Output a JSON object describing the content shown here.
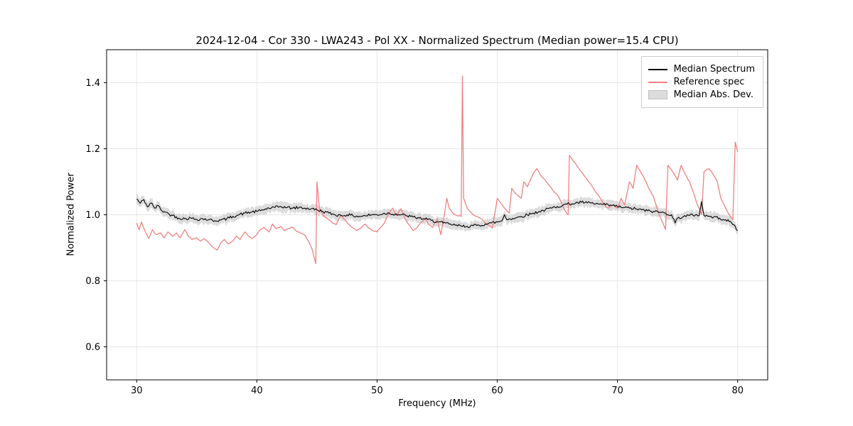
{
  "chart_data": {
    "type": "line",
    "title": "2024-12-04 - Cor 330 - LWA243 - Pol XX - Normalized Spectrum (Median power=15.4 CPU)",
    "xlabel": "Frequency (MHz)",
    "ylabel": "Normalized Power",
    "xlim": [
      27.5,
      82.5
    ],
    "ylim": [
      0.5,
      1.5
    ],
    "xticks": [
      30,
      40,
      50,
      60,
      70,
      80
    ],
    "yticks": [
      0.6,
      0.8,
      1.0,
      1.2,
      1.4
    ],
    "grid": true,
    "legend_position": "upper right",
    "series": [
      {
        "name": "Median Spectrum",
        "type": "line",
        "color": "#000000",
        "linewidth": 1.1,
        "noise": 0.0045,
        "points": [
          [
            30,
            1.048
          ],
          [
            30.3,
            1.035
          ],
          [
            30.6,
            1.046
          ],
          [
            30.9,
            1.024
          ],
          [
            31.2,
            1.036
          ],
          [
            31.5,
            1.02
          ],
          [
            31.8,
            1.028
          ],
          [
            32.1,
            1.012
          ],
          [
            32.4,
            1.008
          ],
          [
            32.7,
            1.002
          ],
          [
            33,
            0.998
          ],
          [
            33.5,
            0.99
          ],
          [
            34,
            0.988
          ],
          [
            34.5,
            0.99
          ],
          [
            35,
            0.986
          ],
          [
            35.5,
            0.988
          ],
          [
            36,
            0.985
          ],
          [
            36.5,
            0.982
          ],
          [
            37,
            0.984
          ],
          [
            37.5,
            0.988
          ],
          [
            38,
            0.995
          ],
          [
            38.5,
            1
          ],
          [
            39,
            1.005
          ],
          [
            39.5,
            1.008
          ],
          [
            40,
            1.01
          ],
          [
            40.5,
            1.015
          ],
          [
            41,
            1.02
          ],
          [
            41.5,
            1.022
          ],
          [
            42,
            1.025
          ],
          [
            42.5,
            1.022
          ],
          [
            43,
            1.02
          ],
          [
            43.5,
            1.022
          ],
          [
            44,
            1.02
          ],
          [
            44.5,
            1.018
          ],
          [
            45,
            1.015
          ],
          [
            45.5,
            1.01
          ],
          [
            46,
            1.005
          ],
          [
            46.5,
            1
          ],
          [
            47,
            0.998
          ],
          [
            47.5,
            1
          ],
          [
            48,
            0.997
          ],
          [
            48.5,
            0.995
          ],
          [
            49,
            0.997
          ],
          [
            49.5,
            1
          ],
          [
            50,
            1
          ],
          [
            50.5,
            1.003
          ],
          [
            51,
            1.005
          ],
          [
            51.5,
            1.002
          ],
          [
            52,
            1
          ],
          [
            52.5,
            0.997
          ],
          [
            53,
            0.993
          ],
          [
            53.5,
            0.99
          ],
          [
            54,
            0.987
          ],
          [
            54.5,
            0.983
          ],
          [
            55,
            0.979
          ],
          [
            55.5,
            0.975
          ],
          [
            56,
            0.972
          ],
          [
            56.5,
            0.968
          ],
          [
            57,
            0.966
          ],
          [
            57.5,
            0.965
          ],
          [
            58,
            0.967
          ],
          [
            58.5,
            0.968
          ],
          [
            59,
            0.972
          ],
          [
            59.5,
            0.975
          ],
          [
            60,
            0.978
          ],
          [
            60.4,
            0.982
          ],
          [
            60.6,
            1.0
          ],
          [
            60.8,
            0.985
          ],
          [
            61,
            0.988
          ],
          [
            61.5,
            0.99
          ],
          [
            62,
            0.995
          ],
          [
            62.5,
            1
          ],
          [
            63,
            1.005
          ],
          [
            63.5,
            1.01
          ],
          [
            64,
            1.015
          ],
          [
            64.5,
            1.02
          ],
          [
            65,
            1.025
          ],
          [
            65.5,
            1.03
          ],
          [
            66,
            1.033
          ],
          [
            66.5,
            1.035
          ],
          [
            67,
            1.038
          ],
          [
            67.5,
            1.036
          ],
          [
            68,
            1.034
          ],
          [
            68.5,
            1.032
          ],
          [
            69,
            1.03
          ],
          [
            69.5,
            1.028
          ],
          [
            70,
            1.025
          ],
          [
            70.5,
            1.022
          ],
          [
            71,
            1.02
          ],
          [
            71.5,
            1.018
          ],
          [
            72,
            1.015
          ],
          [
            72.5,
            1.012
          ],
          [
            73,
            1.01
          ],
          [
            73.5,
            1.008
          ],
          [
            74,
            1.005
          ],
          [
            74.5,
            1
          ],
          [
            74.8,
            0.975
          ],
          [
            75,
            0.99
          ],
          [
            75.5,
            0.995
          ],
          [
            76,
            0.998
          ],
          [
            76.5,
            1
          ],
          [
            76.8,
            0.998
          ],
          [
            77,
            1.04
          ],
          [
            77.2,
            0.998
          ],
          [
            77.5,
            0.996
          ],
          [
            78,
            0.993
          ],
          [
            78.5,
            0.99
          ],
          [
            79,
            0.985
          ],
          [
            79.5,
            0.975
          ],
          [
            79.8,
            0.965
          ],
          [
            80,
            0.952
          ]
        ]
      },
      {
        "name": "Reference spec",
        "type": "line",
        "color": "#f28080",
        "linewidth": 1.3,
        "noise": 0.0015,
        "points": [
          [
            30,
            0.975
          ],
          [
            30.2,
            0.955
          ],
          [
            30.4,
            0.978
          ],
          [
            30.7,
            0.95
          ],
          [
            31,
            0.928
          ],
          [
            31.3,
            0.955
          ],
          [
            31.6,
            0.94
          ],
          [
            32,
            0.945
          ],
          [
            32.3,
            0.93
          ],
          [
            32.6,
            0.948
          ],
          [
            33,
            0.935
          ],
          [
            33.3,
            0.945
          ],
          [
            33.6,
            0.93
          ],
          [
            34,
            0.955
          ],
          [
            34.3,
            0.935
          ],
          [
            34.6,
            0.925
          ],
          [
            35,
            0.93
          ],
          [
            35.3,
            0.92
          ],
          [
            35.6,
            0.928
          ],
          [
            36,
            0.915
          ],
          [
            36.4,
            0.9
          ],
          [
            36.7,
            0.893
          ],
          [
            37,
            0.915
          ],
          [
            37.3,
            0.925
          ],
          [
            37.6,
            0.912
          ],
          [
            38,
            0.92
          ],
          [
            38.3,
            0.935
          ],
          [
            38.6,
            0.925
          ],
          [
            39,
            0.948
          ],
          [
            39.3,
            0.935
          ],
          [
            39.6,
            0.928
          ],
          [
            40,
            0.94
          ],
          [
            40.3,
            0.955
          ],
          [
            40.6,
            0.962
          ],
          [
            41,
            0.948
          ],
          [
            41.3,
            0.972
          ],
          [
            41.6,
            0.958
          ],
          [
            42,
            0.965
          ],
          [
            42.3,
            0.952
          ],
          [
            42.6,
            0.958
          ],
          [
            43,
            0.962
          ],
          [
            43.3,
            0.95
          ],
          [
            43.6,
            0.945
          ],
          [
            44,
            0.938
          ],
          [
            44.3,
            0.92
          ],
          [
            44.6,
            0.895
          ],
          [
            44.9,
            0.852
          ],
          [
            45,
            1.1
          ],
          [
            45.2,
            1.02
          ],
          [
            45.5,
            1
          ],
          [
            45.8,
            0.99
          ],
          [
            46,
            0.985
          ],
          [
            46.3,
            0.975
          ],
          [
            46.6,
            0.97
          ],
          [
            47,
            1
          ],
          [
            47.3,
            0.985
          ],
          [
            47.6,
            0.972
          ],
          [
            48,
            0.96
          ],
          [
            48.3,
            0.952
          ],
          [
            48.6,
            0.958
          ],
          [
            49,
            0.972
          ],
          [
            49.3,
            0.96
          ],
          [
            49.6,
            0.952
          ],
          [
            50,
            0.948
          ],
          [
            50.3,
            0.962
          ],
          [
            50.6,
            0.975
          ],
          [
            51,
            1.005
          ],
          [
            51.3,
            1.02
          ],
          [
            51.6,
            0.998
          ],
          [
            52,
            1.018
          ],
          [
            52.3,
            0.99
          ],
          [
            52.6,
            0.972
          ],
          [
            53,
            0.952
          ],
          [
            53.3,
            0.96
          ],
          [
            53.6,
            0.975
          ],
          [
            54,
            0.988
          ],
          [
            54.3,
            0.97
          ],
          [
            54.6,
            0.962
          ],
          [
            55,
            0.988
          ],
          [
            55.3,
            0.94
          ],
          [
            55.6,
            1
          ],
          [
            55.8,
            1.05
          ],
          [
            56,
            1.02
          ],
          [
            56.3,
            1.005
          ],
          [
            56.6,
            0.998
          ],
          [
            57,
            0.995
          ],
          [
            57.1,
            1.42
          ],
          [
            57.2,
            1.05
          ],
          [
            57.5,
            1.02
          ],
          [
            58,
            1
          ],
          [
            58.3,
            0.995
          ],
          [
            58.6,
            0.99
          ],
          [
            59,
            0.975
          ],
          [
            59.3,
            0.968
          ],
          [
            59.6,
            0.96
          ],
          [
            60,
            1.05
          ],
          [
            60.3,
            1.035
          ],
          [
            60.6,
            1.02
          ],
          [
            61,
            1.005
          ],
          [
            61.2,
            1.08
          ],
          [
            61.5,
            1.065
          ],
          [
            62,
            1.05
          ],
          [
            62.2,
            1.1
          ],
          [
            62.5,
            1.085
          ],
          [
            63,
            1.125
          ],
          [
            63.3,
            1.14
          ],
          [
            63.6,
            1.12
          ],
          [
            64,
            1.105
          ],
          [
            64.3,
            1.09
          ],
          [
            64.6,
            1.075
          ],
          [
            65,
            1.06
          ],
          [
            65.3,
            1.04
          ],
          [
            65.6,
            1.015
          ],
          [
            65.9,
            1
          ],
          [
            66,
            1.18
          ],
          [
            66.4,
            1.16
          ],
          [
            66.8,
            1.14
          ],
          [
            67.2,
            1.12
          ],
          [
            67.6,
            1.1
          ],
          [
            68,
            1.08
          ],
          [
            68.4,
            1.06
          ],
          [
            68.8,
            1.035
          ],
          [
            69.2,
            1.02
          ],
          [
            69.6,
            1.03
          ],
          [
            70,
            1.02
          ],
          [
            70.3,
            1.05
          ],
          [
            70.6,
            1.03
          ],
          [
            71,
            1.1
          ],
          [
            71.3,
            1.08
          ],
          [
            71.6,
            1.15
          ],
          [
            72,
            1.125
          ],
          [
            72.3,
            1.105
          ],
          [
            72.6,
            1.08
          ],
          [
            73,
            1.055
          ],
          [
            73.3,
            1.02
          ],
          [
            73.6,
            0.99
          ],
          [
            74,
            0.955
          ],
          [
            74.2,
            1.15
          ],
          [
            74.6,
            1.13
          ],
          [
            75,
            1.105
          ],
          [
            75.3,
            1.15
          ],
          [
            75.6,
            1.125
          ],
          [
            76,
            1.1
          ],
          [
            76.3,
            1.07
          ],
          [
            76.6,
            1.035
          ],
          [
            77,
            1
          ],
          [
            77.2,
            1.13
          ],
          [
            77.6,
            1.14
          ],
          [
            78,
            1.12
          ],
          [
            78.3,
            1.1
          ],
          [
            78.6,
            1.05
          ],
          [
            79,
            1.02
          ],
          [
            79.3,
            1
          ],
          [
            79.6,
            0.985
          ],
          [
            79.8,
            1.22
          ],
          [
            80,
            1.19
          ]
        ]
      },
      {
        "name": "Median Abs. Dev.",
        "type": "band",
        "around": 0,
        "halfwidth": 0.013,
        "color": "#bfbfbf",
        "opacity": 0.55
      }
    ]
  }
}
